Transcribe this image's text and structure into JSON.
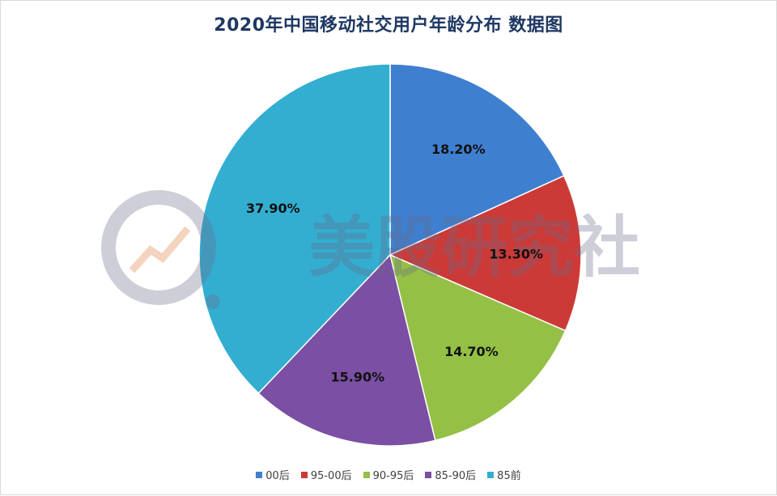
{
  "chart_data": {
    "type": "pie",
    "title": "2020年中国移动社交用户年龄分布 数据图",
    "categories": [
      "00后",
      "95-00后",
      "90-95后",
      "85-90后",
      "85前"
    ],
    "values": [
      18.2,
      13.3,
      14.7,
      15.9,
      37.9
    ],
    "data_labels": [
      "18.20%",
      "13.30%",
      "14.70%",
      "15.90%",
      "37.90%"
    ],
    "colors": [
      "#3f7fcf",
      "#cc3a37",
      "#94c045",
      "#7b4fa3",
      "#33aed0"
    ],
    "legend_position": "bottom",
    "start": "top-clockwise"
  },
  "watermark": {
    "text": "美股研究社"
  }
}
